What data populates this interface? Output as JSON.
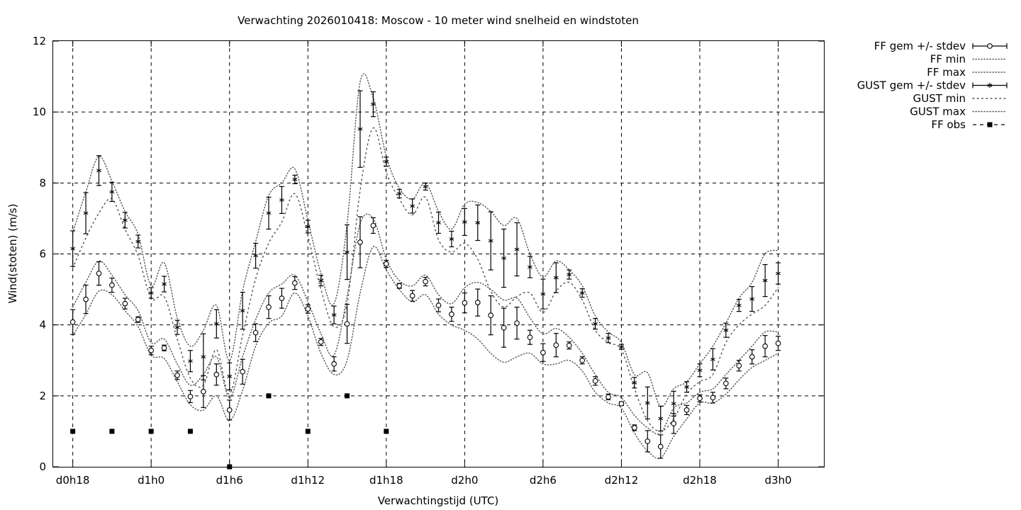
{
  "chart_data": {
    "type": "line",
    "title": "Verwachting 2026010418: Moscow - 10 meter wind snelheid en windstoten",
    "xlabel": "Verwachtingstijd (UTC)",
    "ylabel": "Wind(stoten) (m/s)",
    "ylim": [
      0,
      12
    ],
    "xlim_hours": [
      -1.5,
      57.5
    ],
    "x_unit": "hours after d0h18",
    "y_ticks": [
      "0",
      "2",
      "4",
      "6",
      "8",
      "10",
      "12"
    ],
    "x_ticks": [
      {
        "h": 0,
        "label": "d0h18"
      },
      {
        "h": 6,
        "label": "d1h0"
      },
      {
        "h": 12,
        "label": "d1h6"
      },
      {
        "h": 18,
        "label": "d1h12"
      },
      {
        "h": 24,
        "label": "d1h18"
      },
      {
        "h": 30,
        "label": "d2h0"
      },
      {
        "h": 36,
        "label": "d2h6"
      },
      {
        "h": 42,
        "label": "d2h12"
      },
      {
        "h": 48,
        "label": "d2h18"
      },
      {
        "h": 54,
        "label": "d3h0"
      }
    ],
    "grid": true,
    "legend_position": "outside-right",
    "legend": [
      {
        "label": "FF gem +/- stdev",
        "style": "errorbar-circle"
      },
      {
        "label": "FF min",
        "style": "dotted"
      },
      {
        "label": "FF max",
        "style": "dotted"
      },
      {
        "label": "GUST gem +/- stdev",
        "style": "errorbar-star"
      },
      {
        "label": "GUST min",
        "style": "dotted-sparse"
      },
      {
        "label": "GUST max",
        "style": "dotted"
      },
      {
        "label": "FF obs",
        "style": "square-dashed"
      }
    ],
    "x": [
      0,
      1,
      2,
      3,
      4,
      5,
      6,
      7,
      8,
      9,
      10,
      11,
      12,
      13,
      14,
      15,
      16,
      17,
      18,
      19,
      20,
      21,
      22,
      23,
      24,
      25,
      26,
      27,
      28,
      29,
      30,
      31,
      32,
      33,
      34,
      35,
      36,
      37,
      38,
      39,
      40,
      41,
      42,
      43,
      44,
      45,
      46,
      47,
      48,
      49,
      50,
      51,
      52,
      53,
      54
    ],
    "series": [
      {
        "name": "FF gem +/- stdev",
        "mean": [
          4.08,
          4.72,
          5.45,
          5.12,
          4.6,
          4.15,
          3.28,
          3.35,
          2.58,
          1.98,
          2.12,
          2.6,
          1.6,
          2.68,
          3.78,
          4.5,
          4.75,
          5.18,
          4.45,
          3.52,
          2.9,
          4.03,
          6.33,
          6.8,
          5.72,
          5.1,
          4.82,
          5.22,
          4.55,
          4.3,
          4.62,
          4.63,
          4.27,
          3.92,
          4.05,
          3.65,
          3.22,
          3.43,
          3.42,
          3.0,
          2.42,
          1.97,
          1.78,
          1.1,
          0.72,
          0.57,
          1.22,
          1.6,
          1.93,
          1.95,
          2.35,
          2.85,
          3.1,
          3.4,
          3.48
        ],
        "stdev": [
          0.35,
          0.4,
          0.33,
          0.2,
          0.15,
          0.08,
          0.12,
          0.08,
          0.12,
          0.17,
          0.45,
          0.3,
          0.28,
          0.35,
          0.25,
          0.32,
          0.28,
          0.18,
          0.12,
          0.1,
          0.2,
          0.55,
          0.72,
          0.22,
          0.1,
          0.07,
          0.15,
          0.12,
          0.18,
          0.2,
          0.28,
          0.38,
          0.55,
          0.55,
          0.45,
          0.2,
          0.25,
          0.33,
          0.1,
          0.1,
          0.12,
          0.08,
          0.05,
          0.08,
          0.3,
          0.33,
          0.28,
          0.13,
          0.1,
          0.15,
          0.15,
          0.15,
          0.2,
          0.3,
          0.2
        ]
      },
      {
        "name": "FF min",
        "values": [
          3.7,
          4.3,
          4.95,
          4.85,
          4.4,
          3.95,
          3.15,
          3.05,
          2.4,
          1.75,
          1.6,
          2.0,
          1.3,
          2.15,
          3.4,
          4.05,
          4.25,
          4.9,
          4.25,
          3.2,
          2.6,
          3.0,
          4.9,
          6.2,
          5.55,
          5.0,
          4.65,
          4.85,
          4.3,
          4.0,
          3.85,
          3.6,
          3.2,
          2.95,
          3.1,
          3.2,
          2.9,
          2.9,
          3.0,
          2.7,
          2.1,
          1.8,
          1.65,
          0.95,
          0.45,
          0.25,
          0.85,
          1.35,
          1.8,
          1.8,
          2.05,
          2.45,
          2.8,
          3.0,
          3.2
        ]
      },
      {
        "name": "FF max",
        "values": [
          4.5,
          5.2,
          5.8,
          5.4,
          4.85,
          4.4,
          3.5,
          3.6,
          2.9,
          2.3,
          2.6,
          3.1,
          1.95,
          3.1,
          4.15,
          4.9,
          5.15,
          5.4,
          4.65,
          3.75,
          3.15,
          4.8,
          6.85,
          7.0,
          5.85,
          5.25,
          5.1,
          5.4,
          4.85,
          4.6,
          5.05,
          5.2,
          5.0,
          4.7,
          4.75,
          4.2,
          3.75,
          3.9,
          3.65,
          3.2,
          2.6,
          2.1,
          1.95,
          1.45,
          1.1,
          0.95,
          1.65,
          1.8,
          2.1,
          2.2,
          2.6,
          3.0,
          3.4,
          3.8,
          3.8
        ]
      },
      {
        "name": "GUST gem +/- stdev",
        "mean": [
          6.15,
          7.15,
          8.35,
          7.75,
          6.95,
          6.35,
          4.9,
          5.15,
          3.93,
          2.98,
          3.1,
          4.03,
          2.55,
          4.4,
          5.95,
          7.15,
          7.52,
          8.1,
          6.77,
          5.25,
          4.28,
          6.05,
          9.52,
          10.22,
          8.6,
          7.7,
          7.35,
          7.9,
          6.88,
          6.42,
          6.9,
          6.88,
          6.37,
          5.88,
          6.13,
          5.63,
          4.87,
          5.33,
          5.42,
          4.9,
          4.03,
          3.63,
          3.38,
          2.37,
          1.8,
          1.36,
          1.78,
          2.25,
          2.72,
          3.03,
          3.85,
          4.55,
          4.73,
          5.25,
          5.45
        ],
        "stdev": [
          0.5,
          0.58,
          0.42,
          0.27,
          0.22,
          0.18,
          0.15,
          0.22,
          0.2,
          0.3,
          0.65,
          0.4,
          0.38,
          0.52,
          0.35,
          0.45,
          0.38,
          0.12,
          0.18,
          0.15,
          0.25,
          0.77,
          1.08,
          0.35,
          0.13,
          0.12,
          0.2,
          0.1,
          0.3,
          0.22,
          0.38,
          0.5,
          0.82,
          0.82,
          0.75,
          0.3,
          0.42,
          0.42,
          0.13,
          0.12,
          0.15,
          0.13,
          0.07,
          0.15,
          0.45,
          0.35,
          0.35,
          0.15,
          0.18,
          0.3,
          0.2,
          0.17,
          0.35,
          0.45,
          0.3
        ]
      },
      {
        "name": "GUST min",
        "values": [
          5.6,
          6.45,
          7.15,
          7.55,
          6.7,
          5.95,
          4.75,
          4.8,
          3.6,
          2.5,
          2.3,
          3.3,
          2.05,
          3.7,
          5.3,
          6.3,
          6.9,
          7.7,
          6.5,
          5.0,
          3.95,
          4.6,
          7.8,
          9.55,
          8.3,
          7.55,
          7.1,
          7.6,
          6.4,
          6.05,
          6.3,
          5.85,
          4.95,
          4.5,
          4.8,
          4.9,
          4.35,
          4.95,
          5.2,
          4.7,
          3.85,
          3.5,
          3.3,
          2.2,
          1.3,
          1.0,
          1.35,
          2.05,
          2.4,
          2.6,
          3.5,
          4.0,
          4.3,
          4.55,
          5.05
        ]
      },
      {
        "name": "GUST max",
        "values": [
          6.6,
          7.75,
          8.75,
          8.05,
          7.2,
          6.55,
          5.1,
          5.75,
          4.2,
          3.4,
          3.85,
          4.55,
          3.0,
          4.95,
          6.35,
          7.65,
          8.0,
          8.4,
          6.95,
          5.45,
          4.6,
          6.85,
          10.85,
          10.4,
          8.75,
          7.85,
          7.55,
          8.0,
          7.2,
          6.7,
          7.4,
          7.45,
          7.2,
          6.8,
          7.0,
          6.0,
          5.35,
          5.8,
          5.55,
          5.1,
          4.25,
          3.8,
          3.5,
          2.6,
          2.65,
          1.7,
          2.2,
          2.4,
          2.9,
          3.4,
          4.05,
          4.75,
          5.2,
          6.0,
          6.1
        ]
      },
      {
        "name": "FF obs",
        "x": [
          0,
          3,
          6,
          9,
          12,
          15,
          18,
          21,
          24
        ],
        "values": [
          1,
          1,
          1,
          1,
          0,
          2,
          1,
          2,
          1
        ]
      }
    ]
  }
}
